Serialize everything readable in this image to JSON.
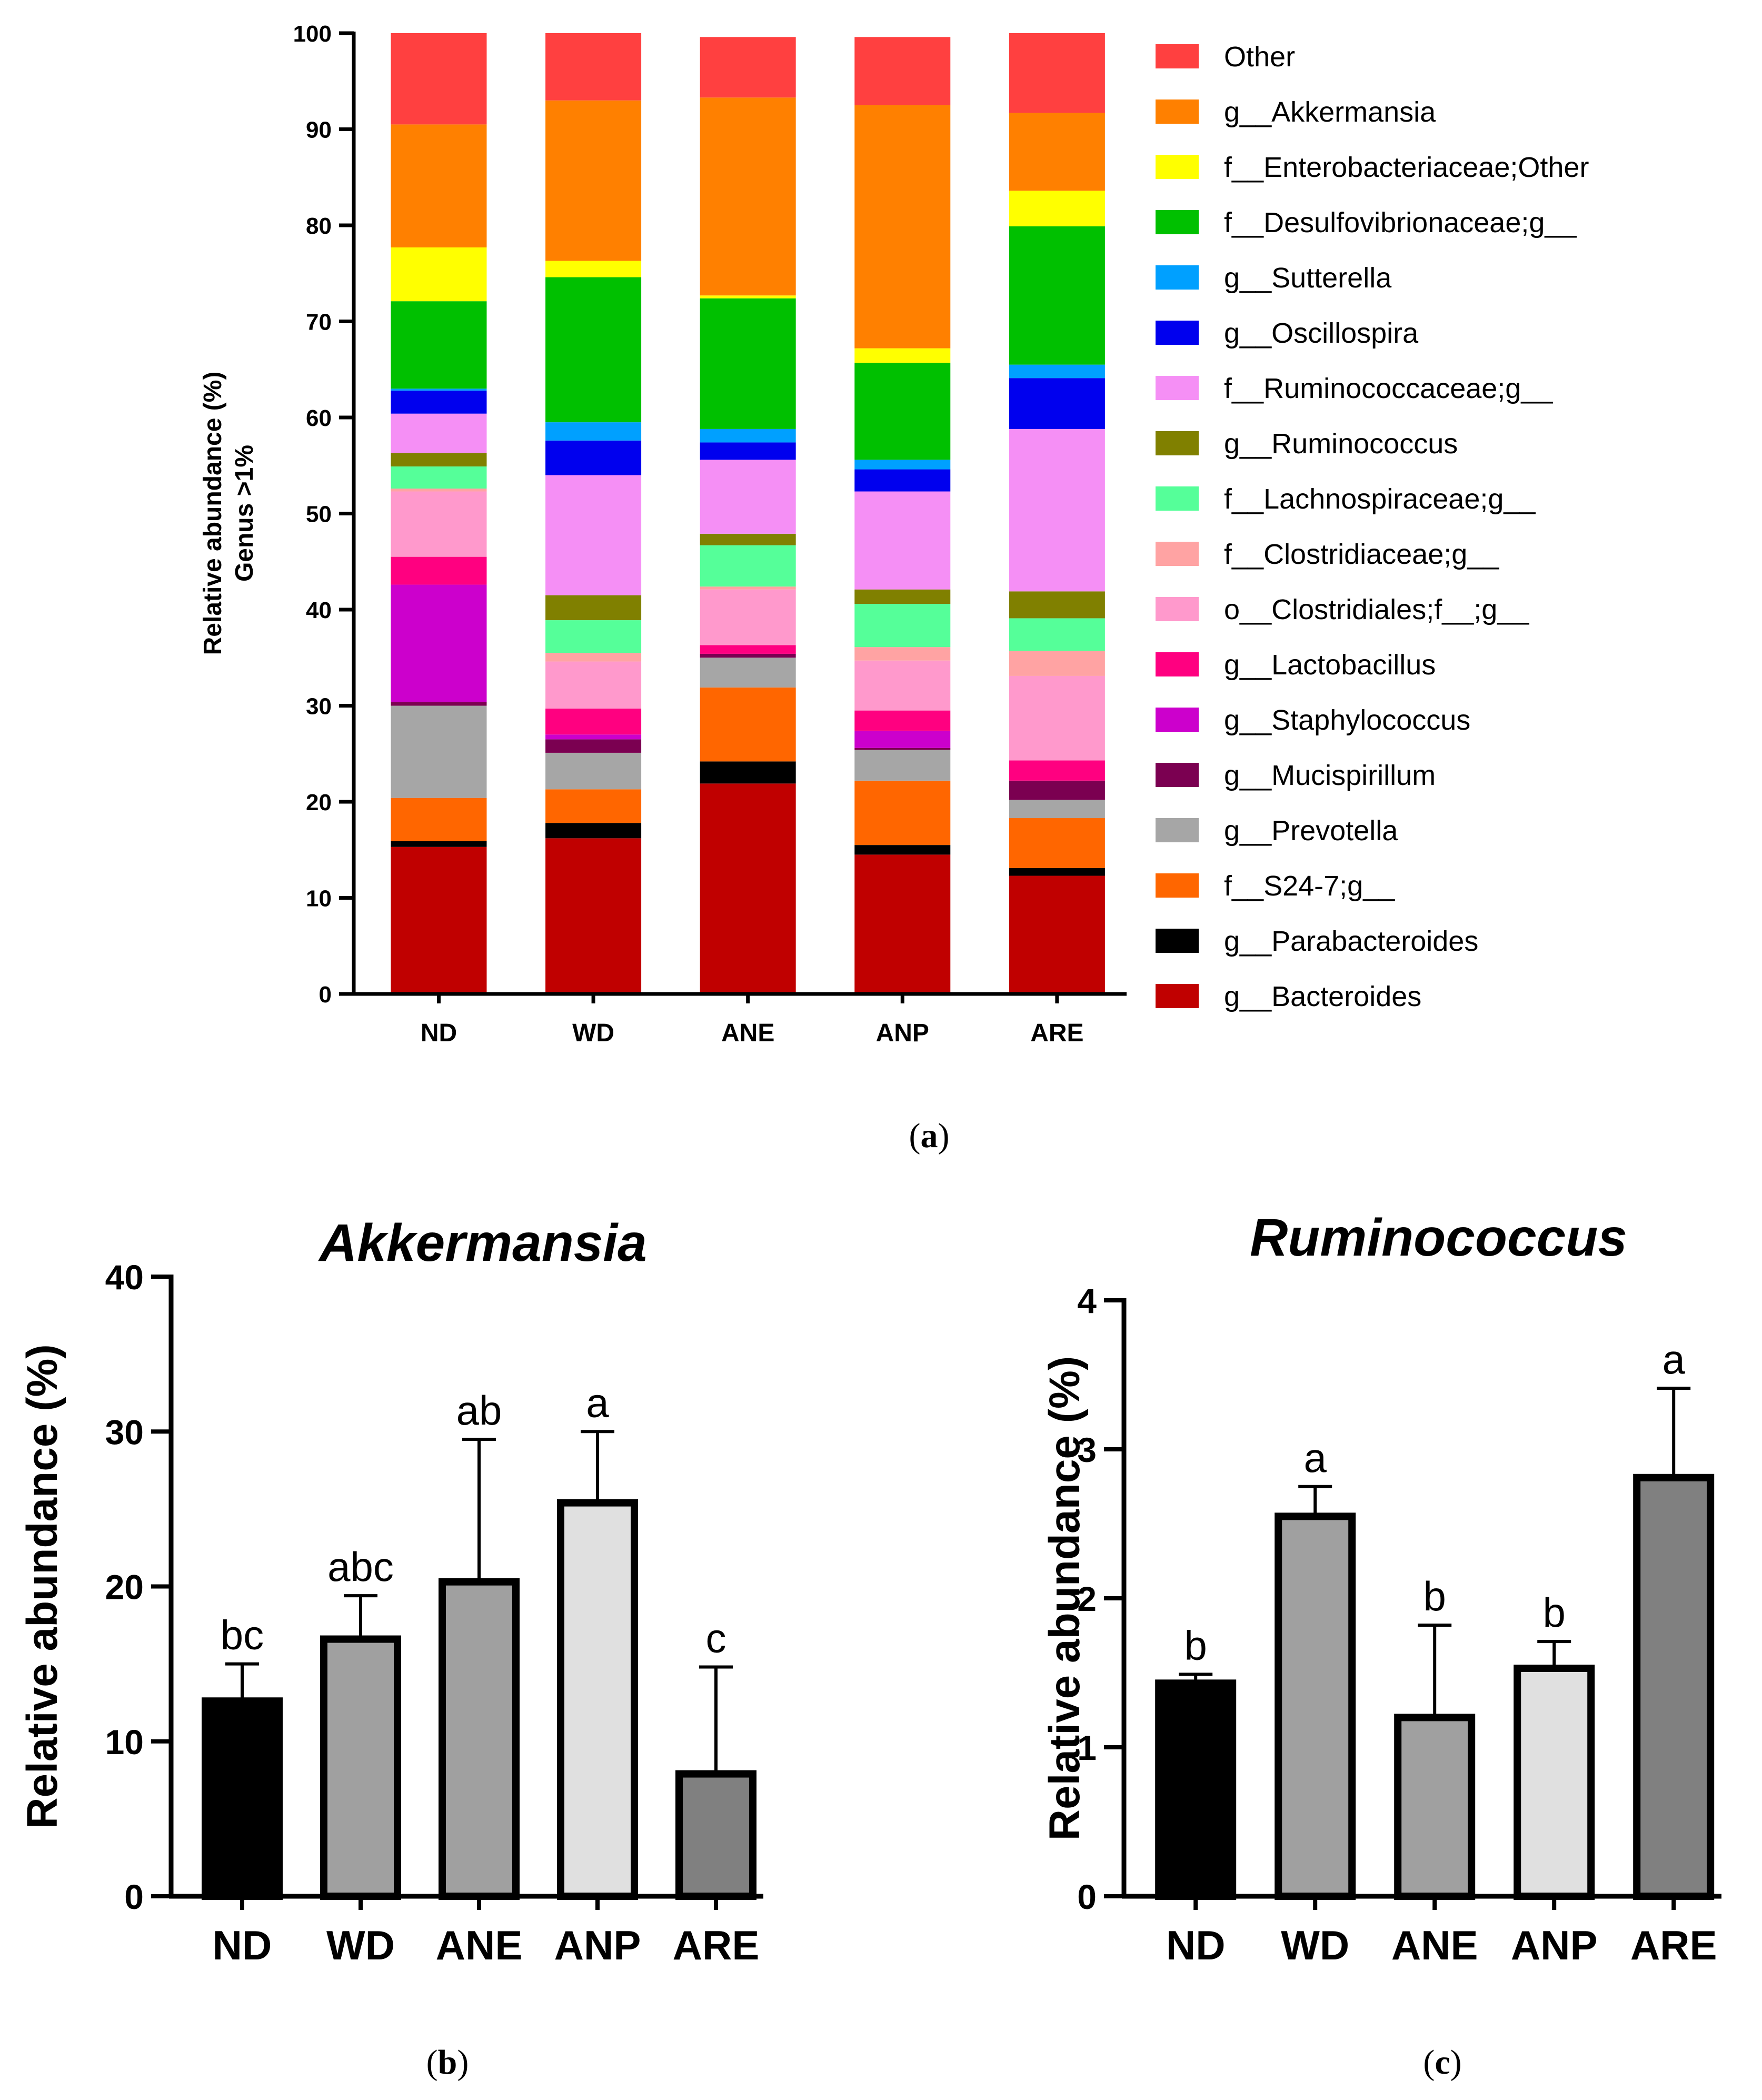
{
  "chart_data": [
    {
      "id": "a",
      "type": "bar",
      "stacked": true,
      "panel_label": "a",
      "title": "",
      "xlabel": "",
      "ylabel": "Relative abundance (%)",
      "ylabel2": "Genus >1%",
      "ylim": [
        0,
        100
      ],
      "yticks": [
        0,
        10,
        20,
        30,
        40,
        50,
        60,
        70,
        80,
        90,
        100
      ],
      "categories": [
        "ND",
        "WD",
        "ANE",
        "ANP",
        "ARE"
      ],
      "legend_position": "right",
      "series": [
        {
          "name": "g__Bacteroides",
          "color": "#c00000",
          "values": [
            15.3,
            16.2,
            21.9,
            14.5,
            12.3
          ]
        },
        {
          "name": "g__Parabacteroides",
          "color": "#000000",
          "values": [
            0.6,
            1.6,
            2.3,
            1.0,
            0.8
          ]
        },
        {
          "name": "f__S24-7;g__",
          "color": "#ff6600",
          "values": [
            4.5,
            3.5,
            7.7,
            6.7,
            5.2
          ]
        },
        {
          "name": "g__Prevotella",
          "color": "#a6a6a6",
          "values": [
            9.6,
            3.8,
            3.1,
            3.2,
            1.9
          ]
        },
        {
          "name": "g__Mucispirillum",
          "color": "#7b0051",
          "values": [
            0.4,
            1.4,
            0.4,
            0.2,
            2.0
          ]
        },
        {
          "name": "g__Staphylococcus",
          "color": "#cc00cc",
          "values": [
            12.2,
            0.5,
            0.0,
            1.8,
            0.0
          ]
        },
        {
          "name": "g__Lactobacillus",
          "color": "#ff0080",
          "values": [
            2.9,
            2.7,
            0.9,
            2.1,
            2.1
          ]
        },
        {
          "name": "o__Clostridiales;f__;g__",
          "color": "#ff99cc",
          "values": [
            6.8,
            4.9,
            5.8,
            5.2,
            8.8
          ]
        },
        {
          "name": "f__Clostridiaceae;g__",
          "color": "#ffa3a3",
          "values": [
            0.3,
            0.9,
            0.3,
            1.4,
            2.6
          ]
        },
        {
          "name": "f__Lachnospiraceae;g__",
          "color": "#55ff99",
          "values": [
            2.3,
            3.4,
            4.3,
            4.5,
            3.4
          ]
        },
        {
          "name": "g__Ruminococcus",
          "color": "#808000",
          "values": [
            1.4,
            2.6,
            1.2,
            1.5,
            2.8
          ]
        },
        {
          "name": "f__Ruminococcaceae;g__",
          "color": "#f58ff5",
          "values": [
            4.1,
            12.5,
            7.7,
            10.2,
            16.9
          ]
        },
        {
          "name": "g__Oscillospira",
          "color": "#0000ee",
          "values": [
            2.4,
            3.6,
            1.8,
            2.3,
            5.3
          ]
        },
        {
          "name": "g__Sutterella",
          "color": "#00a0ff",
          "values": [
            0.2,
            1.9,
            1.4,
            1.0,
            1.4
          ]
        },
        {
          "name": "f__Desulfovibrionaceae;g__",
          "color": "#00c000",
          "values": [
            9.1,
            15.1,
            13.6,
            10.1,
            14.4
          ]
        },
        {
          "name": "f__Enterobacteriaceae;Other",
          "color": "#ffff00",
          "values": [
            5.6,
            1.7,
            0.3,
            1.5,
            3.7
          ]
        },
        {
          "name": "g__Akkermansia",
          "color": "#ff8000",
          "values": [
            12.8,
            16.7,
            20.6,
            25.3,
            8.1
          ]
        },
        {
          "name": "Other",
          "color": "#ff4040",
          "values": [
            9.5,
            7.0,
            6.3,
            7.1,
            8.3
          ]
        }
      ]
    },
    {
      "id": "b",
      "type": "bar",
      "panel_label": "b",
      "title": "Akkermansia",
      "xlabel": "",
      "ylabel": "Relative abundance (%)",
      "ylim": [
        0,
        40
      ],
      "yticks": [
        0,
        10,
        20,
        30,
        40
      ],
      "categories": [
        "ND",
        "WD",
        "ANE",
        "ANP",
        "ARE"
      ],
      "values": [
        12.6,
        16.6,
        20.3,
        25.4,
        7.9
      ],
      "errors": [
        2.4,
        2.8,
        9.2,
        4.6,
        6.9
      ],
      "significance": [
        "bc",
        "abc",
        "ab",
        "a",
        "c"
      ],
      "colors": [
        "#000000",
        "#a0a0a0",
        "#a0a0a0",
        "#e0e0e0",
        "#808080"
      ]
    },
    {
      "id": "c",
      "type": "bar",
      "panel_label": "c",
      "title": "Ruminococcus",
      "xlabel": "",
      "ylabel": "Relative abundance (%)",
      "ylim": [
        0,
        4
      ],
      "yticks": [
        0,
        1,
        2,
        3,
        4
      ],
      "categories": [
        "ND",
        "WD",
        "ANE",
        "ANP",
        "ARE"
      ],
      "values": [
        1.43,
        2.55,
        1.2,
        1.53,
        2.81
      ],
      "errors": [
        0.06,
        0.2,
        0.62,
        0.18,
        0.6
      ],
      "significance": [
        "b",
        "a",
        "b",
        "b",
        "a"
      ],
      "colors": [
        "#000000",
        "#a0a0a0",
        "#a0a0a0",
        "#e0e0e0",
        "#808080"
      ]
    }
  ]
}
